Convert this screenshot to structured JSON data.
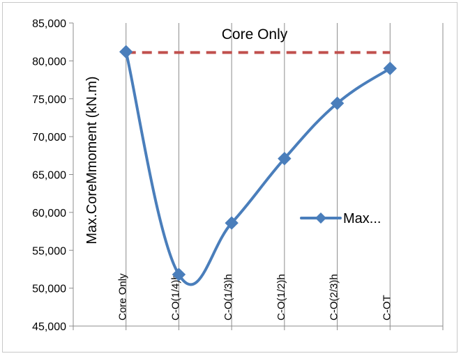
{
  "chart_data": {
    "type": "line",
    "title": "",
    "xlabel": "",
    "ylabel": "Max.CoreMmoment (kN.m)",
    "ylim": [
      45000,
      85000
    ],
    "yticks": [
      45000,
      50000,
      55000,
      60000,
      65000,
      70000,
      75000,
      80000,
      85000
    ],
    "ytick_labels": [
      "45,000",
      "50,000",
      "55,000",
      "60,000",
      "65,000",
      "70,000",
      "75,000",
      "80,000",
      "85,000"
    ],
    "categories": [
      "Core Only",
      "C-O(1/4)h",
      "C-O(1/3)h",
      "C-O(1/2)h",
      "C-O(2/3)h",
      "C-OT"
    ],
    "grid": "vertical",
    "legend_position": "right",
    "series": [
      {
        "name": "Max...",
        "values": [
          81200,
          51800,
          58600,
          67100,
          74400,
          79000
        ],
        "color": "#4a7ebb",
        "marker": "diamond",
        "smooth": true
      }
    ],
    "reference_line": {
      "label": "Core Only",
      "value": 81100,
      "color": "#c0504d",
      "style": "dashed"
    }
  }
}
